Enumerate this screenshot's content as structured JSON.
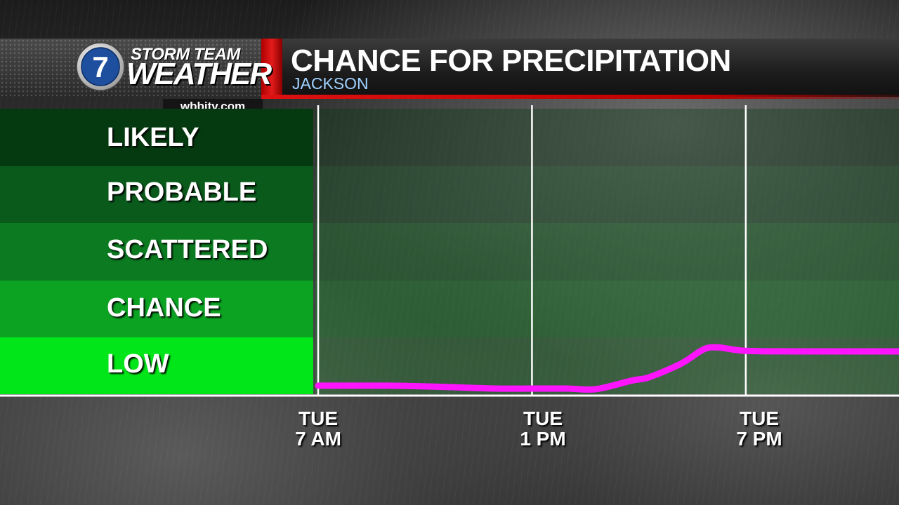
{
  "header": {
    "brand_top": "STORM TEAM",
    "brand_bottom": "WEATHER",
    "logo_number": "7",
    "website": "wbbjtv.com",
    "title": "CHANCE FOR PRECIPITATION",
    "location": "JACKSON"
  },
  "colors": {
    "line": "#ff14ff",
    "band_likely": "#053a10",
    "band_probable": "#0a5a1c",
    "band_scattered": "#0b7a20",
    "band_chance": "#0ca323",
    "band_low": "#00e619"
  },
  "chart_data": {
    "type": "line",
    "categories": [
      "LIKELY",
      "PROBABLE",
      "SCATTERED",
      "CHANCE",
      "LOW"
    ],
    "x_ticks": [
      {
        "line1": "TUE",
        "line2": "7 AM"
      },
      {
        "line1": "TUE",
        "line2": "1 PM"
      },
      {
        "line1": "TUE",
        "line2": "7 PM"
      }
    ],
    "xlim_hours": [
      7,
      23.3
    ],
    "tick_hours": [
      7,
      13,
      19
    ],
    "ylim": [
      0,
      5
    ],
    "series": [
      {
        "x": [
          7,
          9,
          10.5,
          12,
          13,
          14,
          14.8,
          15.8,
          16.3,
          17.2,
          17.8,
          18.2,
          19,
          20.5,
          22,
          23.3
        ],
        "y": [
          0.16,
          0.16,
          0.14,
          0.11,
          0.11,
          0.11,
          0.1,
          0.25,
          0.31,
          0.55,
          0.79,
          0.83,
          0.77,
          0.76,
          0.76,
          0.76
        ]
      }
    ]
  }
}
